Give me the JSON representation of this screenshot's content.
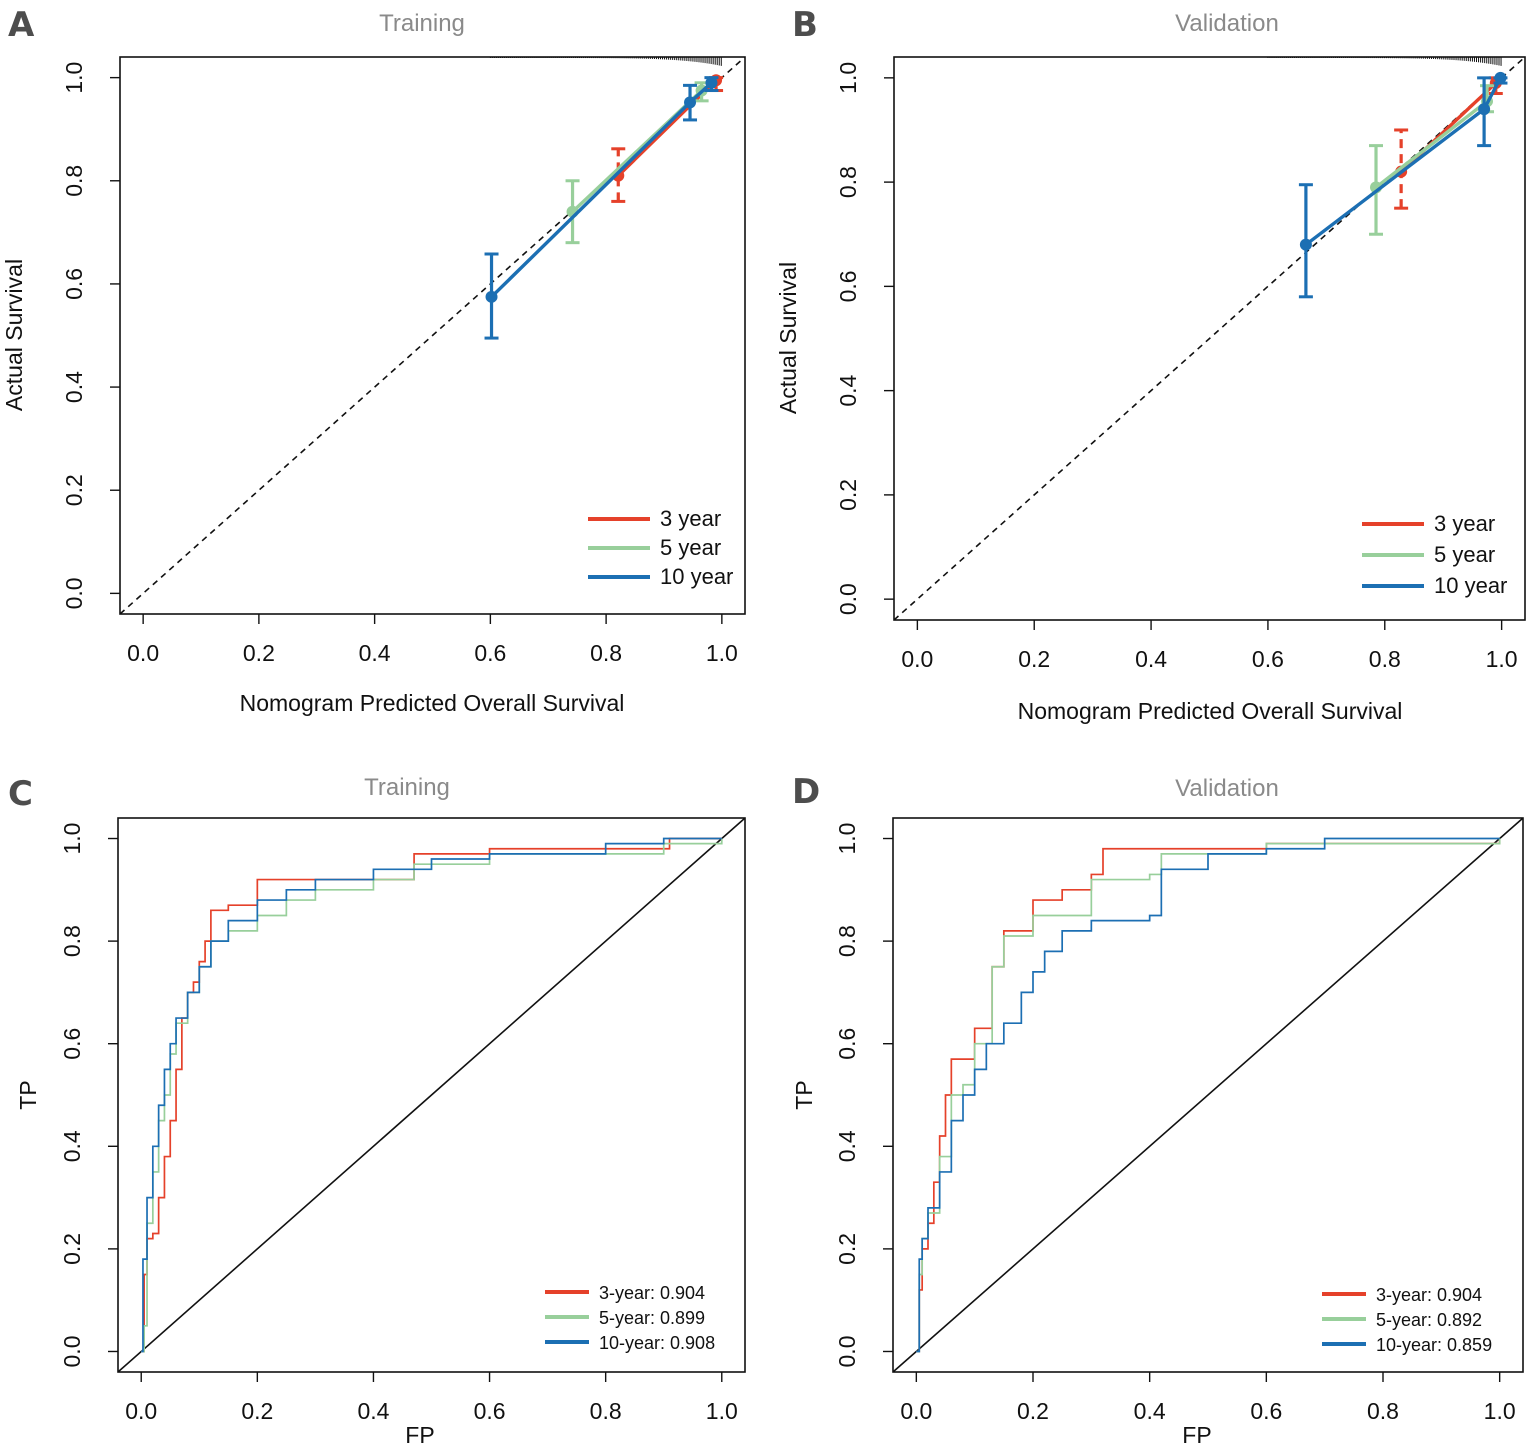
{
  "colors": {
    "red": "#e5412a",
    "green": "#98cf9b",
    "blue": "#1c6fb3"
  },
  "chart_data": [
    {
      "panel": "A",
      "title": "Training",
      "type": "line",
      "xlabel": "Nomogram Predicted Overall Survival",
      "ylabel": "Actual Survival",
      "xlim": [
        -0.04,
        1.04
      ],
      "ylim": [
        -0.04,
        1.04
      ],
      "xticks": [
        0.0,
        0.2,
        0.4,
        0.6,
        0.8,
        1.0
      ],
      "xtick_labels": [
        "0.0",
        "0.2",
        "0.4",
        "0.6",
        "0.8",
        "1.0"
      ],
      "yticks": [
        0.0,
        0.2,
        0.4,
        0.6,
        0.8,
        1.0
      ],
      "ytick_labels": [
        "0.0",
        "0.2",
        "0.4",
        "0.6",
        "0.8",
        "1.0"
      ],
      "diagonal": true,
      "rug": true,
      "series": [
        {
          "name": "3 year",
          "color": "red",
          "points": [
            [
              0.821,
              0.81
            ],
            [
              0.99,
              0.995
            ]
          ],
          "ci": [
            [
              0.821,
              0.76,
              0.862
            ],
            [
              0.99,
              0.975,
              1.0
            ]
          ]
        },
        {
          "name": "5 year",
          "color": "green",
          "points": [
            [
              0.742,
              0.74
            ],
            [
              0.965,
              0.975
            ]
          ],
          "ci": [
            [
              0.742,
              0.68,
              0.8
            ],
            [
              0.965,
              0.955,
              0.99
            ]
          ]
        },
        {
          "name": "10 year",
          "color": "blue",
          "points": [
            [
              0.602,
              0.575
            ],
            [
              0.945,
              0.952
            ],
            [
              0.982,
              0.99
            ]
          ],
          "ci": [
            [
              0.602,
              0.495,
              0.658
            ],
            [
              0.945,
              0.918,
              0.985
            ],
            [
              0.982,
              0.975,
              1.0
            ]
          ]
        }
      ],
      "legend": [
        "3 year",
        "5 year",
        "10 year"
      ]
    },
    {
      "panel": "B",
      "title": "Validation",
      "type": "line",
      "xlabel": "Nomogram Predicted Overall Survival",
      "ylabel": "Actual Survival",
      "xlim": [
        -0.04,
        1.04
      ],
      "ylim": [
        -0.04,
        1.04
      ],
      "xticks": [
        0.0,
        0.2,
        0.4,
        0.6,
        0.8,
        1.0
      ],
      "xtick_labels": [
        "0.0",
        "0.2",
        "0.4",
        "0.6",
        "0.8",
        "1.0"
      ],
      "yticks": [
        0.0,
        0.2,
        0.4,
        0.6,
        0.8,
        1.0
      ],
      "ytick_labels": [
        "0.0",
        "0.2",
        "0.4",
        "0.6",
        "0.8",
        "1.0"
      ],
      "diagonal": true,
      "rug": true,
      "series": [
        {
          "name": "3 year",
          "color": "red",
          "points": [
            [
              0.828,
              0.82
            ],
            [
              0.99,
              0.99
            ]
          ],
          "ci": [
            [
              0.828,
              0.75,
              0.9
            ],
            [
              0.99,
              0.97,
              1.0
            ]
          ]
        },
        {
          "name": "5 year",
          "color": "green",
          "points": [
            [
              0.785,
              0.79
            ],
            [
              0.975,
              0.955
            ]
          ],
          "ci": [
            [
              0.785,
              0.7,
              0.87
            ],
            [
              0.975,
              0.935,
              0.985
            ]
          ]
        },
        {
          "name": "10 year",
          "color": "blue",
          "points": [
            [
              0.665,
              0.68
            ],
            [
              0.97,
              0.94
            ],
            [
              0.998,
              1.0
            ]
          ],
          "ci": [
            [
              0.665,
              0.58,
              0.795
            ],
            [
              0.97,
              0.87,
              1.0
            ],
            [
              0.998,
              0.99,
              1.0
            ]
          ]
        }
      ],
      "legend": [
        "3 year",
        "5 year",
        "10 year"
      ]
    },
    {
      "panel": "C",
      "title": "Training",
      "type": "line",
      "xlabel": "FP",
      "ylabel": "TP",
      "xlim": [
        -0.04,
        1.04
      ],
      "ylim": [
        -0.04,
        1.04
      ],
      "xticks": [
        0.0,
        0.2,
        0.4,
        0.6,
        0.8,
        1.0
      ],
      "xtick_labels": [
        "0.0",
        "0.2",
        "0.4",
        "0.6",
        "0.8",
        "1.0"
      ],
      "yticks": [
        0.0,
        0.2,
        0.4,
        0.6,
        0.8,
        1.0
      ],
      "ytick_labels": [
        "0.0",
        "0.2",
        "0.4",
        "0.6",
        "0.8",
        "1.0"
      ],
      "diagonal_solid": true,
      "series": [
        {
          "name": "3-year: 0.904",
          "color": "red",
          "points": [
            [
              0,
              0
            ],
            [
              0.005,
              0.15
            ],
            [
              0.01,
              0.22
            ],
            [
              0.02,
              0.23
            ],
            [
              0.03,
              0.3
            ],
            [
              0.04,
              0.38
            ],
            [
              0.05,
              0.45
            ],
            [
              0.06,
              0.55
            ],
            [
              0.07,
              0.65
            ],
            [
              0.08,
              0.7
            ],
            [
              0.09,
              0.72
            ],
            [
              0.1,
              0.76
            ],
            [
              0.11,
              0.8
            ],
            [
              0.12,
              0.86
            ],
            [
              0.15,
              0.87
            ],
            [
              0.2,
              0.92
            ],
            [
              0.45,
              0.92
            ],
            [
              0.47,
              0.97
            ],
            [
              0.6,
              0.98
            ],
            [
              0.9,
              0.98
            ],
            [
              0.91,
              1.0
            ],
            [
              1,
              1
            ]
          ]
        },
        {
          "name": "5-year: 0.899",
          "color": "green",
          "points": [
            [
              0,
              0
            ],
            [
              0.005,
              0.05
            ],
            [
              0.01,
              0.25
            ],
            [
              0.02,
              0.35
            ],
            [
              0.03,
              0.45
            ],
            [
              0.04,
              0.5
            ],
            [
              0.05,
              0.58
            ],
            [
              0.06,
              0.64
            ],
            [
              0.08,
              0.7
            ],
            [
              0.1,
              0.75
            ],
            [
              0.12,
              0.8
            ],
            [
              0.15,
              0.82
            ],
            [
              0.2,
              0.85
            ],
            [
              0.25,
              0.88
            ],
            [
              0.3,
              0.9
            ],
            [
              0.4,
              0.92
            ],
            [
              0.47,
              0.95
            ],
            [
              0.6,
              0.97
            ],
            [
              0.8,
              0.97
            ],
            [
              0.9,
              0.99
            ],
            [
              1,
              1
            ]
          ]
        },
        {
          "name": "10-year: 0.908",
          "color": "blue",
          "points": [
            [
              0,
              0
            ],
            [
              0.003,
              0.18
            ],
            [
              0.01,
              0.3
            ],
            [
              0.02,
              0.4
            ],
            [
              0.03,
              0.48
            ],
            [
              0.04,
              0.55
            ],
            [
              0.05,
              0.6
            ],
            [
              0.06,
              0.65
            ],
            [
              0.08,
              0.7
            ],
            [
              0.1,
              0.75
            ],
            [
              0.12,
              0.8
            ],
            [
              0.15,
              0.84
            ],
            [
              0.2,
              0.88
            ],
            [
              0.25,
              0.9
            ],
            [
              0.3,
              0.92
            ],
            [
              0.4,
              0.94
            ],
            [
              0.5,
              0.96
            ],
            [
              0.6,
              0.97
            ],
            [
              0.8,
              0.99
            ],
            [
              0.9,
              1.0
            ],
            [
              1,
              1
            ]
          ]
        }
      ],
      "legend": [
        "3-year: 0.904",
        "5-year: 0.899",
        "10-year: 0.908"
      ]
    },
    {
      "panel": "D",
      "title": "Validation",
      "type": "line",
      "xlabel": "FP",
      "ylabel": "TP",
      "xlim": [
        -0.04,
        1.04
      ],
      "ylim": [
        -0.04,
        1.04
      ],
      "xticks": [
        0.0,
        0.2,
        0.4,
        0.6,
        0.8,
        1.0
      ],
      "xtick_labels": [
        "0.0",
        "0.2",
        "0.4",
        "0.6",
        "0.8",
        "1.0"
      ],
      "yticks": [
        0.0,
        0.2,
        0.4,
        0.6,
        0.8,
        1.0
      ],
      "ytick_labels": [
        "0.0",
        "0.2",
        "0.4",
        "0.6",
        "0.8",
        "1.0"
      ],
      "diagonal_solid": true,
      "series": [
        {
          "name": "3-year: 0.904",
          "color": "red",
          "points": [
            [
              0,
              0
            ],
            [
              0.005,
              0.12
            ],
            [
              0.01,
              0.2
            ],
            [
              0.02,
              0.25
            ],
            [
              0.03,
              0.33
            ],
            [
              0.04,
              0.42
            ],
            [
              0.05,
              0.5
            ],
            [
              0.06,
              0.57
            ],
            [
              0.1,
              0.63
            ],
            [
              0.13,
              0.75
            ],
            [
              0.15,
              0.82
            ],
            [
              0.2,
              0.88
            ],
            [
              0.25,
              0.9
            ],
            [
              0.3,
              0.93
            ],
            [
              0.32,
              0.98
            ],
            [
              0.6,
              0.99
            ],
            [
              1,
              1
            ]
          ]
        },
        {
          "name": "5-year: 0.892",
          "color": "green",
          "points": [
            [
              0,
              0
            ],
            [
              0.005,
              0.15
            ],
            [
              0.01,
              0.22
            ],
            [
              0.02,
              0.27
            ],
            [
              0.04,
              0.38
            ],
            [
              0.06,
              0.5
            ],
            [
              0.08,
              0.52
            ],
            [
              0.1,
              0.6
            ],
            [
              0.13,
              0.75
            ],
            [
              0.15,
              0.81
            ],
            [
              0.2,
              0.85
            ],
            [
              0.3,
              0.92
            ],
            [
              0.4,
              0.93
            ],
            [
              0.42,
              0.97
            ],
            [
              0.6,
              0.99
            ],
            [
              1,
              1
            ]
          ]
        },
        {
          "name": "10-year: 0.859",
          "color": "blue",
          "points": [
            [
              0,
              0
            ],
            [
              0.005,
              0.18
            ],
            [
              0.01,
              0.22
            ],
            [
              0.02,
              0.28
            ],
            [
              0.04,
              0.35
            ],
            [
              0.06,
              0.45
            ],
            [
              0.08,
              0.5
            ],
            [
              0.1,
              0.55
            ],
            [
              0.12,
              0.6
            ],
            [
              0.15,
              0.64
            ],
            [
              0.18,
              0.7
            ],
            [
              0.2,
              0.74
            ],
            [
              0.22,
              0.78
            ],
            [
              0.25,
              0.82
            ],
            [
              0.3,
              0.84
            ],
            [
              0.4,
              0.85
            ],
            [
              0.42,
              0.94
            ],
            [
              0.5,
              0.97
            ],
            [
              0.6,
              0.98
            ],
            [
              0.7,
              1.0
            ],
            [
              0.85,
              1.0
            ],
            [
              1,
              1
            ]
          ]
        }
      ],
      "legend": [
        "3-year: 0.904",
        "5-year: 0.892",
        "10-year: 0.859"
      ]
    }
  ]
}
